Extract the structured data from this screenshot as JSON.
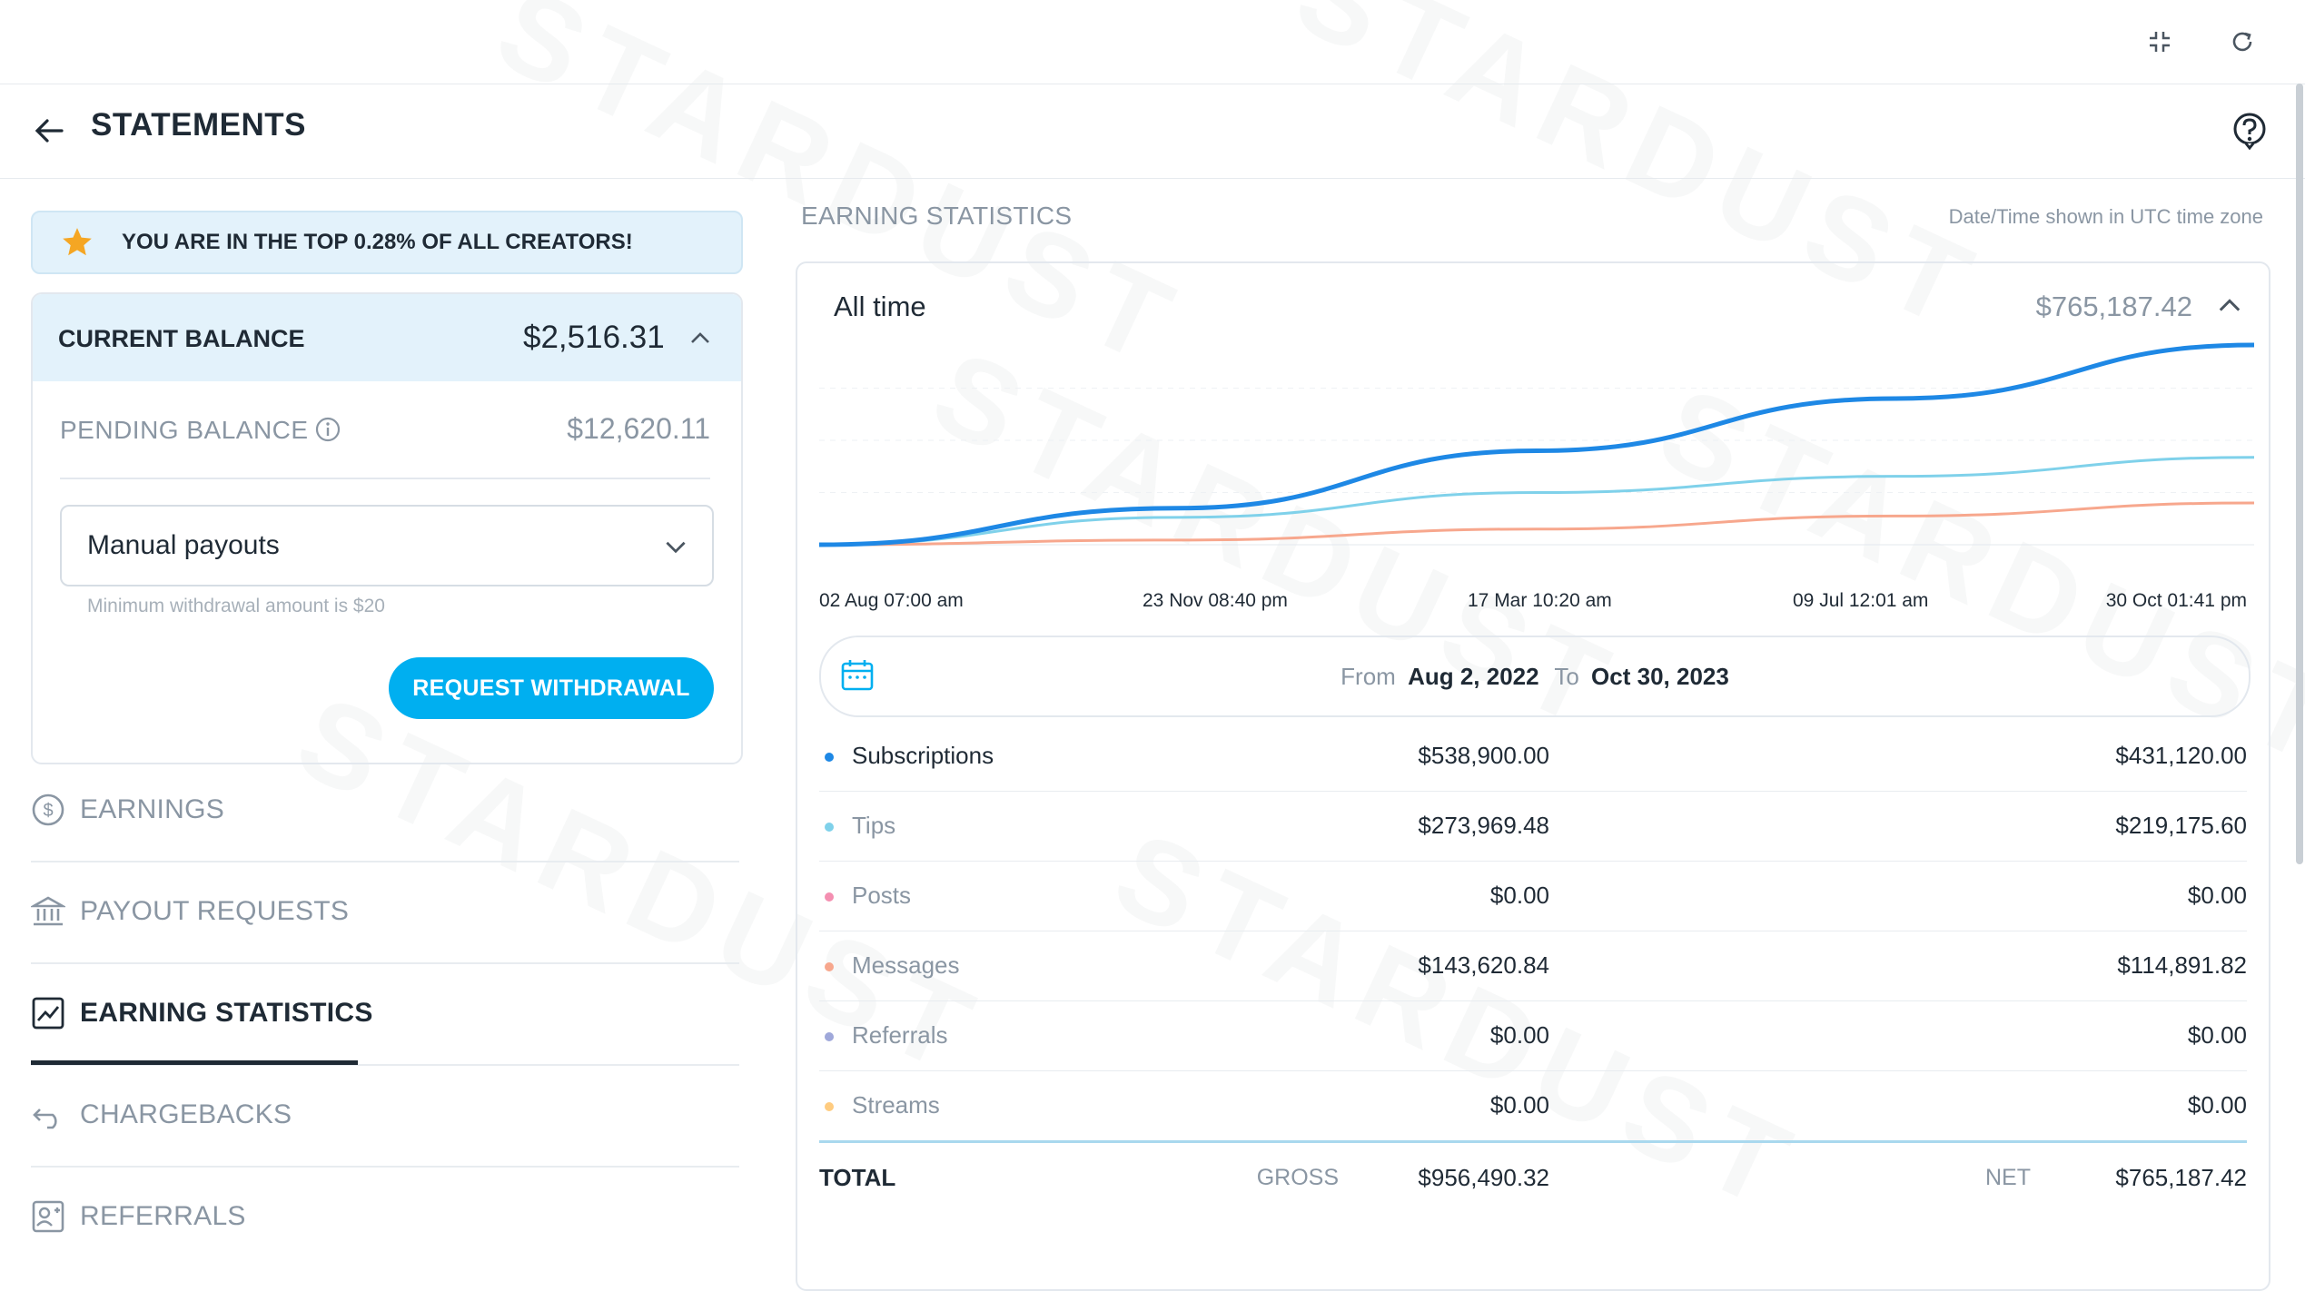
{
  "header": {
    "title": "STATEMENTS"
  },
  "topbar": {
    "icons": [
      "fullscreen-exit-icon",
      "refresh-icon"
    ]
  },
  "help_icon": "help-icon",
  "banner": {
    "text": "YOU ARE IN THE TOP 0.28% OF ALL CREATORS!"
  },
  "balance": {
    "current_label": "CURRENT BALANCE",
    "current_amount": "$2,516.31",
    "pending_label": "PENDING BALANCE",
    "pending_amount": "$12,620.11",
    "payout_method": "Manual payouts",
    "min_withdrawal_hint": "Minimum withdrawal amount is $20",
    "withdraw_button": "REQUEST WITHDRAWAL"
  },
  "nav": [
    {
      "label": "EARNINGS",
      "icon": "dollar-circle-icon",
      "active": false
    },
    {
      "label": "PAYOUT REQUESTS",
      "icon": "bank-icon",
      "active": false
    },
    {
      "label": "EARNING STATISTICS",
      "icon": "chart-icon",
      "active": true
    },
    {
      "label": "CHARGEBACKS",
      "icon": "undo-icon",
      "active": false
    },
    {
      "label": "REFERRALS",
      "icon": "referral-icon",
      "active": false
    }
  ],
  "stats": {
    "section_title": "EARNING STATISTICS",
    "timezone_note": "Date/Time shown in UTC time zone",
    "period_label": "All time",
    "total": "$765,187.42",
    "x_ticks": [
      "02 Aug 07:00 am",
      "23 Nov 08:40 pm",
      "17 Mar 10:20 am",
      "09 Jul 12:01 am",
      "30 Oct 01:41 pm"
    ],
    "date_range": {
      "from_label": "From",
      "from": "Aug 2, 2022",
      "to_label": "To",
      "to": "Oct 30, 2023"
    },
    "rows": [
      {
        "name": "Subscriptions",
        "gross": "$538,900.00",
        "net": "$431,120.00",
        "color": "#1e88e5"
      },
      {
        "name": "Tips",
        "gross": "$273,969.48",
        "net": "$219,175.60",
        "color": "#7fd1ea"
      },
      {
        "name": "Posts",
        "gross": "$0.00",
        "net": "$0.00",
        "color": "#f48fb1"
      },
      {
        "name": "Messages",
        "gross": "$143,620.84",
        "net": "$114,891.82",
        "color": "#f7a78d"
      },
      {
        "name": "Referrals",
        "gross": "$0.00",
        "net": "$0.00",
        "color": "#9fa8da"
      },
      {
        "name": "Streams",
        "gross": "$0.00",
        "net": "$0.00",
        "color": "#ffcc80"
      }
    ],
    "totals": {
      "label": "TOTAL",
      "gross_label": "GROSS",
      "gross": "$956,490.32",
      "net_label": "NET",
      "net": "$765,187.42"
    }
  },
  "chart_data": {
    "type": "line",
    "x": [
      "02 Aug 07:00 am",
      "23 Nov 08:40 pm",
      "17 Mar 10:20 am",
      "09 Jul 12:01 am",
      "30 Oct 01:41 pm"
    ],
    "series": [
      {
        "values": [
          0,
          140000,
          360000,
          560000,
          765187
        ],
        "color": "#1e88e5"
      },
      {
        "values": [
          0,
          105000,
          200000,
          262000,
          335000
        ],
        "color": "#7fd1ea"
      },
      {
        "values": [
          0,
          18000,
          60000,
          110000,
          160000
        ],
        "color": "#f7a78d"
      }
    ],
    "ylim": [
      0,
      800000
    ],
    "grid": true
  }
}
